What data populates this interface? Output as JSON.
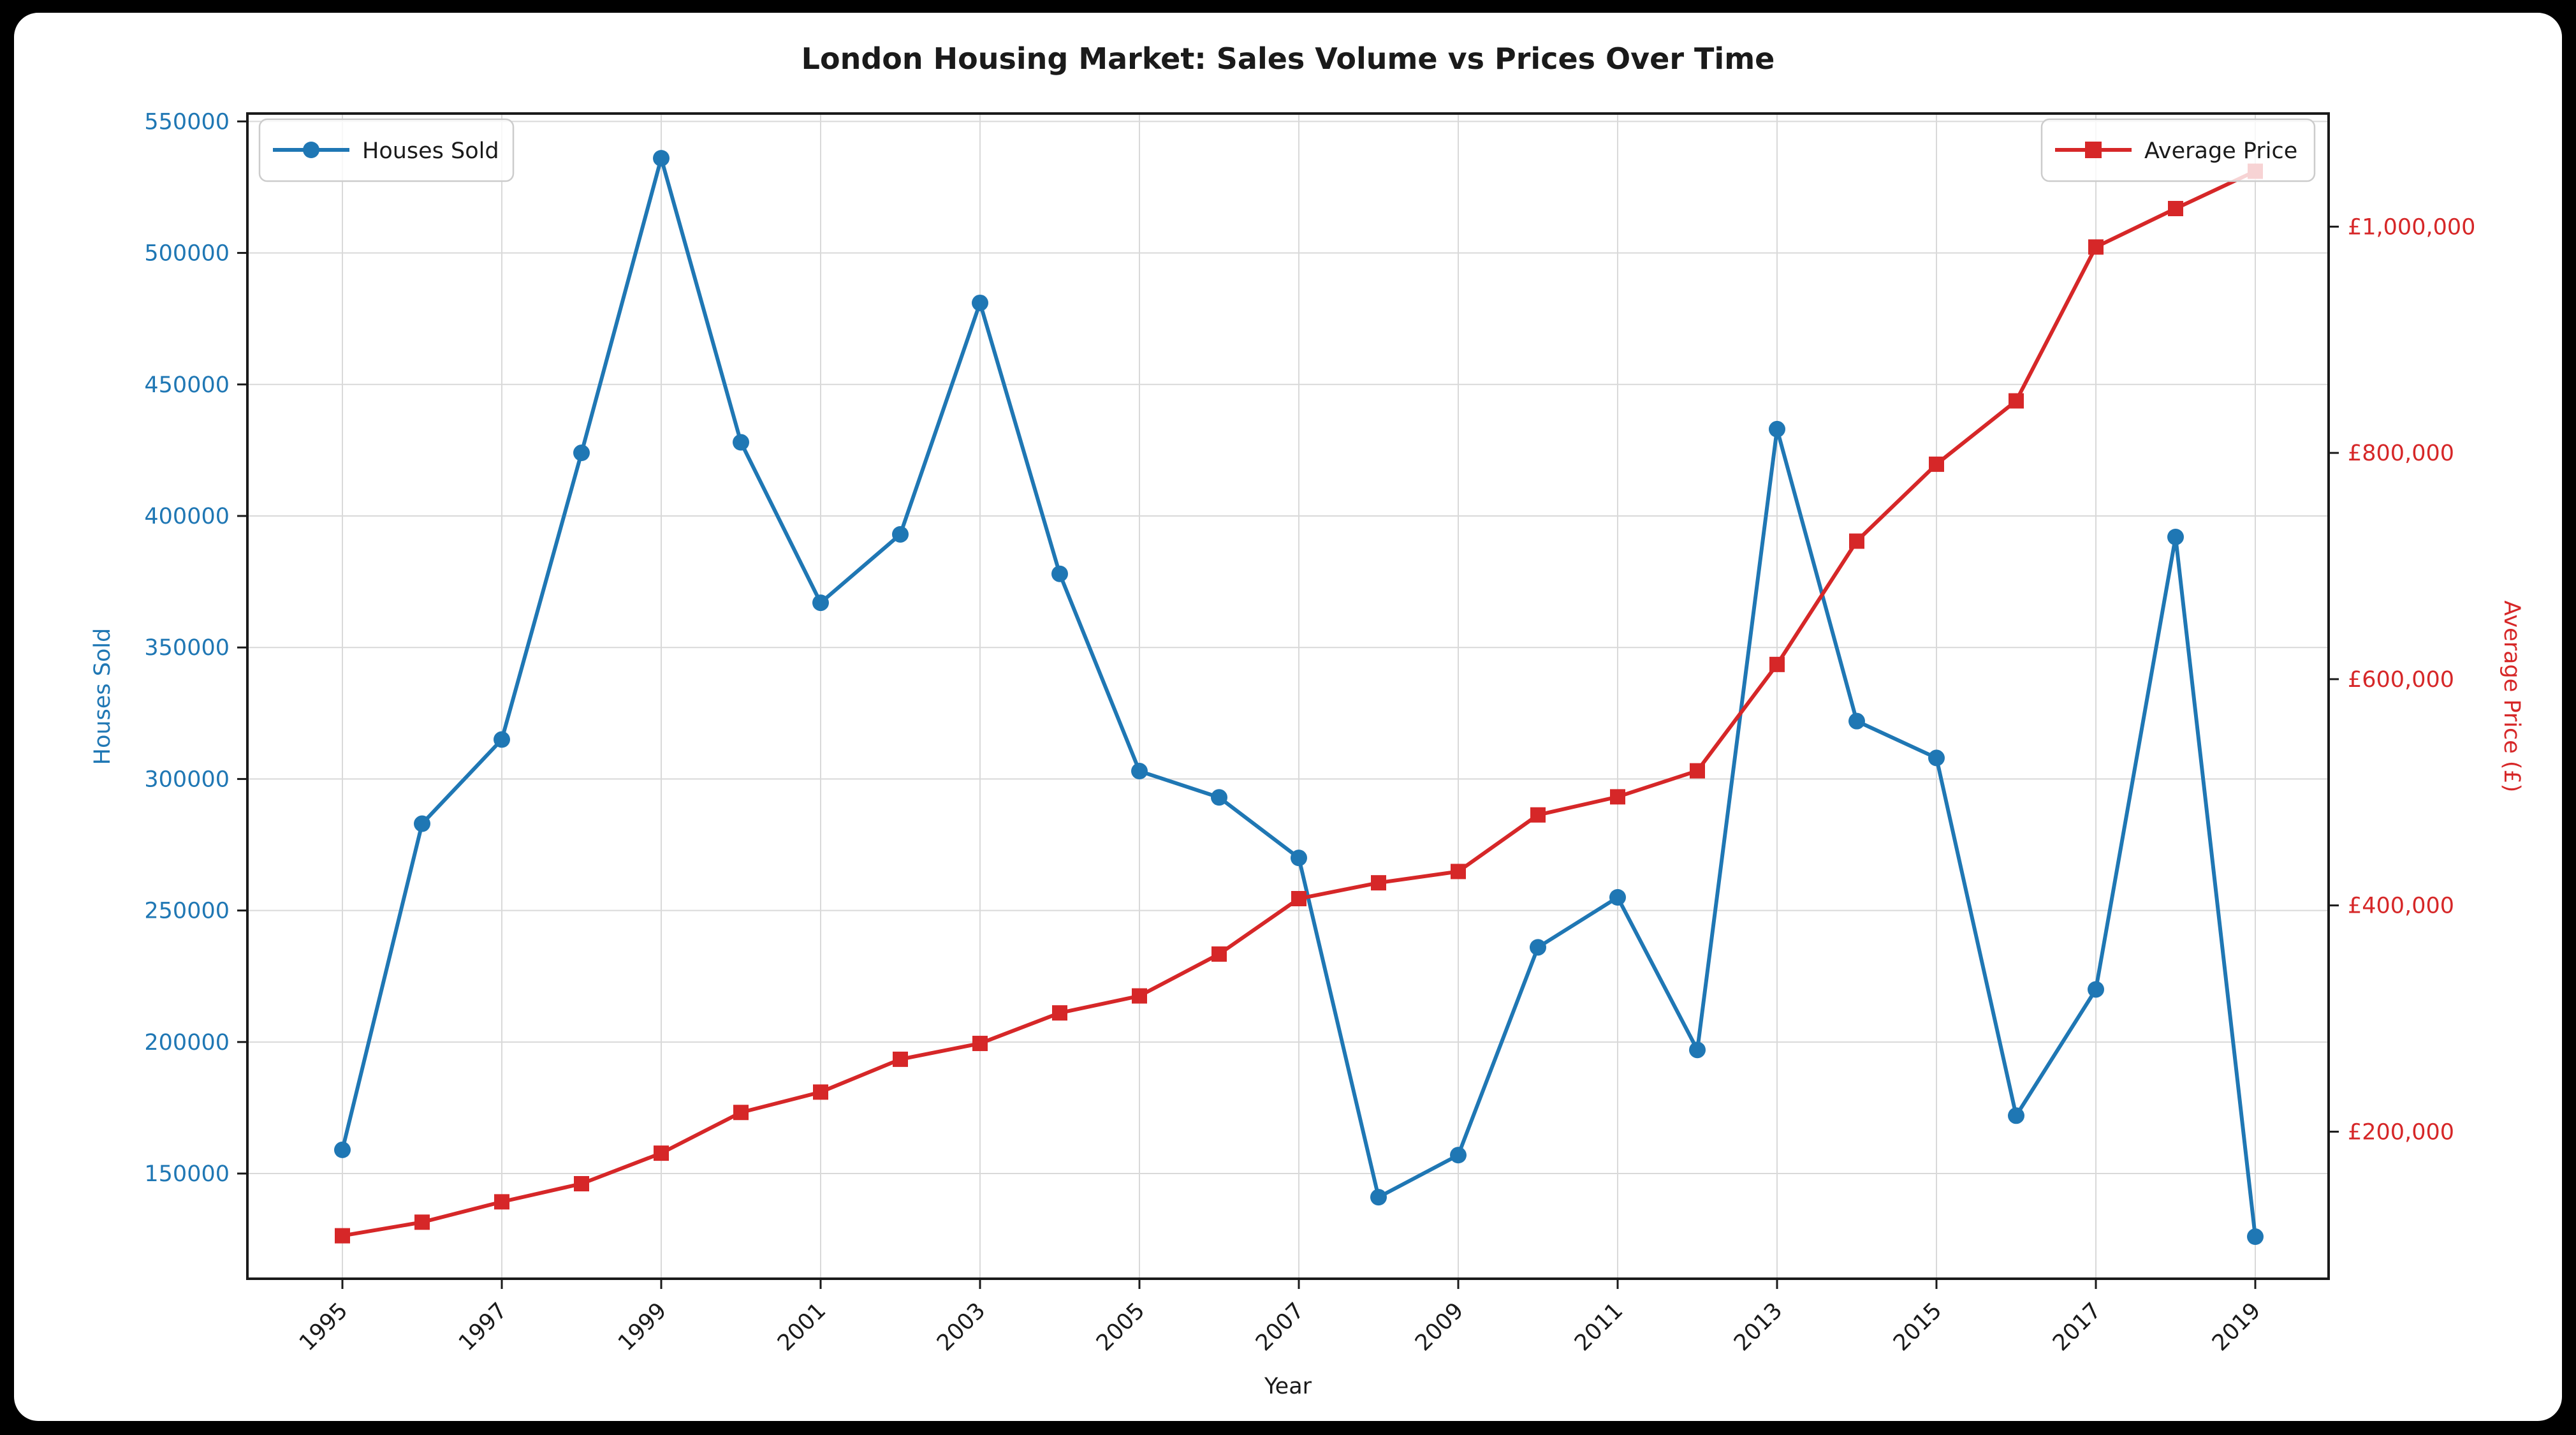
{
  "page": {
    "background_color": "#000000",
    "card_background_color": "#ffffff"
  },
  "chart_data": {
    "type": "line",
    "title": "London Housing Market: Sales Volume vs Prices Over Time",
    "xlabel": "Year",
    "grid": true,
    "x": [
      1995,
      1996,
      1997,
      1998,
      1999,
      2000,
      2001,
      2002,
      2003,
      2004,
      2005,
      2006,
      2007,
      2008,
      2009,
      2010,
      2011,
      2012,
      2013,
      2014,
      2015,
      2016,
      2017,
      2018,
      2019
    ],
    "x_ticks": [
      1995,
      1997,
      1999,
      2001,
      2003,
      2005,
      2007,
      2009,
      2011,
      2013,
      2015,
      2017,
      2019
    ],
    "x_tick_labels": [
      "1995",
      "1997",
      "1999",
      "2001",
      "2003",
      "2005",
      "2007",
      "2009",
      "2011",
      "2013",
      "2015",
      "2017",
      "2019"
    ],
    "series": [
      {
        "name": "Houses Sold",
        "axis": "left",
        "color": "#1f77b4",
        "marker": "circle",
        "legend_position": "upper left",
        "values": [
          159000,
          283000,
          315000,
          424000,
          536000,
          428000,
          367000,
          393000,
          481000,
          378000,
          303000,
          293000,
          270000,
          141000,
          157000,
          236000,
          255000,
          197000,
          433000,
          322000,
          308000,
          172000,
          220000,
          392000,
          126000
        ]
      },
      {
        "name": "Average Price",
        "axis": "right",
        "color": "#d62728",
        "marker": "square",
        "legend_position": "upper right",
        "values": [
          108000,
          120000,
          138000,
          154000,
          181000,
          217000,
          235000,
          264000,
          278000,
          305000,
          320000,
          357000,
          406000,
          420000,
          430000,
          480000,
          496000,
          519000,
          613000,
          722000,
          790000,
          846000,
          982000,
          1016000,
          1049000
        ]
      }
    ],
    "left_axis": {
      "label": "Houses Sold",
      "color": "#1f77b4",
      "ticks": [
        150000,
        200000,
        250000,
        300000,
        350000,
        400000,
        450000,
        500000,
        550000
      ],
      "tick_labels": [
        "150000",
        "200000",
        "250000",
        "300000",
        "350000",
        "400000",
        "450000",
        "500000",
        "550000"
      ],
      "range": [
        110000,
        553000
      ]
    },
    "right_axis": {
      "label": "Average Price (£)",
      "color": "#d62728",
      "ticks": [
        200000,
        400000,
        600000,
        800000,
        1000000
      ],
      "tick_labels": [
        "£200,000",
        "£400,000",
        "£600,000",
        "£800,000",
        "£1,000,000"
      ],
      "range": [
        70000,
        1100000
      ]
    },
    "style": {
      "grid_color": "#d9d9d9",
      "spine_color": "#1a1a1a",
      "x_tick_label_color": "#1a1a1a",
      "legend_border_color": "#cccccc",
      "legend_background": "rgba(255,255,255,0.8)"
    }
  }
}
